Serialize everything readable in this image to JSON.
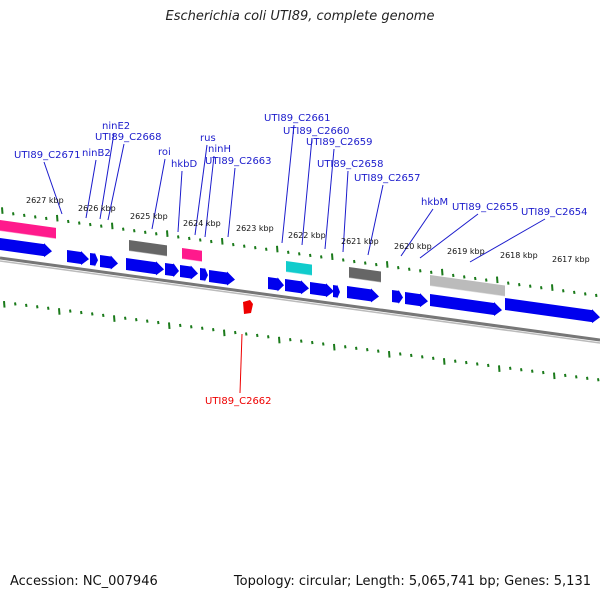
{
  "title": "Escherichia coli UTI89, complete genome",
  "footer": {
    "accession": "Accession: NC_007946",
    "stats": "Topology: circular; Length: 5,065,741 bp; Genes: 5,131"
  },
  "colors": {
    "cds": "#0000ee",
    "label": "#1b1bcc",
    "highlight": "#ee0000",
    "tick": "#1a7a1a",
    "trna": "#ff1a8c",
    "misc_dark": "#666666",
    "misc_light": "#bbbbbb",
    "cyan": "#11cccc",
    "backbone": "#888888"
  },
  "kbp_ticks": [
    "2627 kbp",
    "2626 kbp",
    "2625 kbp",
    "2624 kbp",
    "2623 kbp",
    "2622 kbp",
    "2621 kbp",
    "2620 kbp",
    "2619 kbp",
    "2618 kbp",
    "2617 kbp"
  ],
  "gene_labels": [
    "UTI89_C2671",
    "ninB2",
    "ninE2",
    "UTI89_C2668",
    "roi",
    "hkbD",
    "rus",
    "ninH",
    "UTI89_C2663",
    "UTI89_C2661",
    "UTI89_C2660",
    "UTI89_C2659",
    "UTI89_C2658",
    "UTI89_C2657",
    "hkbM",
    "UTI89_C2655",
    "UTI89_C2654"
  ],
  "highlight_label": "UTI89_C2662"
}
